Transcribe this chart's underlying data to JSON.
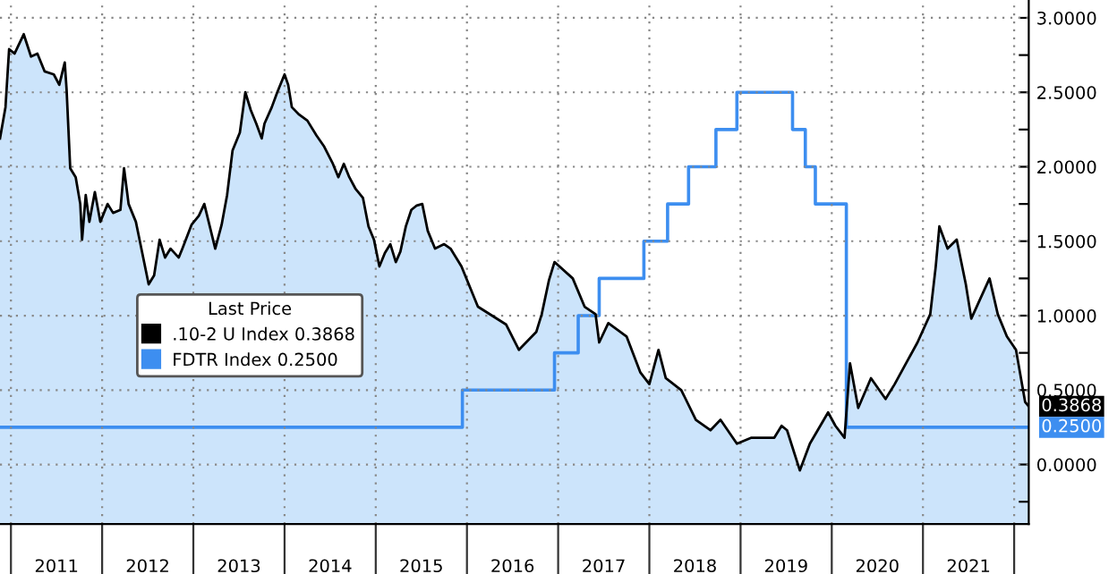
{
  "chart_data": {
    "type": "area",
    "legend_title": "Last Price",
    "legend": "center left",
    "grid": true,
    "xlim": [
      2010.88,
      2022.16
    ],
    "ylim": [
      -0.4,
      3.12
    ],
    "xticks": [
      {
        "value": 2011,
        "label": null
      },
      {
        "value": 2011.5,
        "label": "2011"
      },
      {
        "value": 2012,
        "label": null
      },
      {
        "value": 2012.5,
        "label": "2012"
      },
      {
        "value": 2013,
        "label": null
      },
      {
        "value": 2013.5,
        "label": "2013"
      },
      {
        "value": 2014,
        "label": null
      },
      {
        "value": 2014.5,
        "label": "2014"
      },
      {
        "value": 2015,
        "label": null
      },
      {
        "value": 2015.5,
        "label": "2015"
      },
      {
        "value": 2016,
        "label": null
      },
      {
        "value": 2016.5,
        "label": "2016"
      },
      {
        "value": 2017,
        "label": null
      },
      {
        "value": 2017.5,
        "label": "2017"
      },
      {
        "value": 2018,
        "label": null
      },
      {
        "value": 2018.5,
        "label": "2018"
      },
      {
        "value": 2019,
        "label": null
      },
      {
        "value": 2019.5,
        "label": "2019"
      },
      {
        "value": 2020,
        "label": null
      },
      {
        "value": 2020.5,
        "label": "2020"
      },
      {
        "value": 2021,
        "label": null
      },
      {
        "value": 2021.5,
        "label": "2021"
      },
      {
        "value": 2022,
        "label": null
      }
    ],
    "yticks": [
      {
        "value": -0.25,
        "label": null
      },
      {
        "value": 0,
        "label": "0.0000"
      },
      {
        "value": 0.5,
        "label": "0.5000"
      },
      {
        "value": 0.75,
        "label": null
      },
      {
        "value": 1,
        "label": "1.0000"
      },
      {
        "value": 1.25,
        "label": null
      },
      {
        "value": 1.5,
        "label": "1.5000"
      },
      {
        "value": 1.75,
        "label": null
      },
      {
        "value": 2,
        "label": "2.0000"
      },
      {
        "value": 2.25,
        "label": null
      },
      {
        "value": 2.5,
        "label": "2.5000"
      },
      {
        "value": 2.75,
        "label": null
      },
      {
        "value": 3,
        "label": "3.0000"
      }
    ],
    "series": [
      {
        "name": ".10-2 U Index 0.3868",
        "color": "#cce4fb",
        "x": [
          2010.88,
          2010.94,
          2010.98,
          2011.04,
          2011.14,
          2011.22,
          2011.29,
          2011.37,
          2011.47,
          2011.53,
          2011.59,
          2011.61,
          2011.65,
          2011.71,
          2011.76,
          2011.78,
          2011.82,
          2011.86,
          2011.92,
          2011.98,
          2012.06,
          2012.12,
          2012.2,
          2012.24,
          2012.29,
          2012.37,
          2012.45,
          2012.51,
          2012.57,
          2012.63,
          2012.69,
          2012.75,
          2012.84,
          2012.88,
          2012.98,
          2013.06,
          2013.12,
          2013.18,
          2013.24,
          2013.31,
          2013.37,
          2013.43,
          2013.51,
          2013.57,
          2013.63,
          2013.69,
          2013.75,
          2013.78,
          2013.86,
          2013.92,
          2014.0,
          2014.04,
          2014.08,
          2014.16,
          2014.25,
          2014.35,
          2014.43,
          2014.53,
          2014.59,
          2014.65,
          2014.71,
          2014.78,
          2014.86,
          2014.92,
          2014.98,
          2015.04,
          2015.1,
          2015.16,
          2015.22,
          2015.27,
          2015.33,
          2015.39,
          2015.45,
          2015.51,
          2015.57,
          2015.65,
          2015.75,
          2015.82,
          2015.88,
          2015.94,
          2016.02,
          2016.12,
          2016.43,
          2016.57,
          2016.76,
          2016.82,
          2016.9,
          2016.96,
          2017.16,
          2017.29,
          2017.41,
          2017.45,
          2017.55,
          2017.75,
          2017.9,
          2018.0,
          2018.1,
          2018.18,
          2018.35,
          2018.51,
          2018.67,
          2018.78,
          2018.96,
          2019.12,
          2019.37,
          2019.45,
          2019.51,
          2019.65,
          2019.76,
          2019.96,
          2020.04,
          2020.14,
          2020.2,
          2020.29,
          2020.43,
          2020.59,
          2020.69,
          2020.94,
          2021.08,
          2021.14,
          2021.18,
          2021.27,
          2021.37,
          2021.47,
          2021.53,
          2021.73,
          2021.82,
          2021.92,
          2022.02,
          2022.12,
          2022.16
        ],
        "values": [
          2.19,
          2.4,
          2.79,
          2.76,
          2.89,
          2.74,
          2.76,
          2.64,
          2.62,
          2.55,
          2.7,
          2.52,
          1.99,
          1.93,
          1.75,
          1.51,
          1.81,
          1.63,
          1.83,
          1.63,
          1.75,
          1.69,
          1.71,
          1.99,
          1.75,
          1.63,
          1.39,
          1.21,
          1.27,
          1.51,
          1.39,
          1.45,
          1.39,
          1.45,
          1.61,
          1.67,
          1.75,
          1.6,
          1.45,
          1.61,
          1.81,
          2.11,
          2.23,
          2.5,
          2.38,
          2.29,
          2.19,
          2.29,
          2.4,
          2.5,
          2.62,
          2.55,
          2.4,
          2.35,
          2.31,
          2.21,
          2.14,
          2.02,
          1.93,
          2.02,
          1.93,
          1.85,
          1.79,
          1.6,
          1.51,
          1.33,
          1.42,
          1.48,
          1.36,
          1.43,
          1.6,
          1.71,
          1.74,
          1.75,
          1.57,
          1.45,
          1.48,
          1.45,
          1.39,
          1.33,
          1.21,
          1.06,
          0.94,
          0.77,
          0.89,
          1.01,
          1.24,
          1.36,
          1.25,
          1.06,
          1.01,
          0.82,
          0.95,
          0.86,
          0.62,
          0.54,
          0.77,
          0.58,
          0.5,
          0.3,
          0.23,
          0.3,
          0.14,
          0.18,
          0.18,
          0.26,
          0.23,
          -0.04,
          0.14,
          0.35,
          0.26,
          0.18,
          0.68,
          0.38,
          0.58,
          0.44,
          0.54,
          0.82,
          1.01,
          1.33,
          1.6,
          1.45,
          1.51,
          1.21,
          0.98,
          1.25,
          1.01,
          0.86,
          0.77,
          0.42,
          0.39
        ]
      },
      {
        "name": "FDTR Index 0.2500",
        "type": "step",
        "color": "#3d8ef0",
        "x": [
          2010.88,
          2015.95,
          2016.96,
          2017.22,
          2017.45,
          2017.94,
          2018.2,
          2018.43,
          2018.73,
          2018.96,
          2019.57,
          2019.71,
          2019.82,
          2020.16,
          2022.16
        ],
        "values": [
          0.25,
          0.5,
          0.75,
          1.0,
          1.25,
          1.5,
          1.75,
          2.0,
          2.25,
          2.5,
          2.25,
          2.0,
          1.75,
          0.25,
          0.25
        ]
      }
    ],
    "bands": [
      {
        "axis": "y",
        "from": -0.4,
        "to": 0,
        "color": "#cce4fb"
      }
    ],
    "annotations": [
      {
        "text": "0.3868",
        "x": 2022.16,
        "y": 0.39
      },
      {
        "text": "0.2500",
        "x": 2022.16,
        "y": 0.25
      }
    ]
  }
}
